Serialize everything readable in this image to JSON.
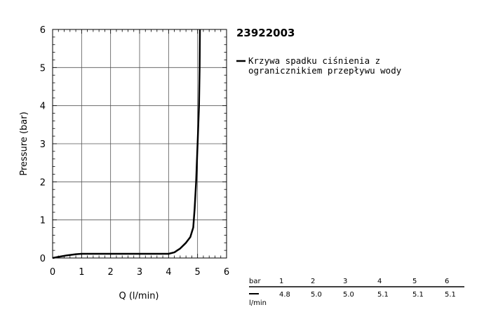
{
  "chart_data": {
    "type": "line",
    "title": "23922003",
    "xlabel": "Q (l/min)",
    "ylabel": "Pressure (bar)",
    "xlim": [
      0,
      6
    ],
    "ylim": [
      0,
      6
    ],
    "x_ticks": [
      "0",
      "1",
      "2",
      "3",
      "4",
      "5",
      "6"
    ],
    "y_ticks": [
      "0",
      "1",
      "2",
      "3",
      "4",
      "5",
      "6"
    ],
    "grid": true,
    "legend_position": "right",
    "series": [
      {
        "name": "Krzywa spadku ciśnienia z ogranicznikiem przepływu wody",
        "color": "#000000",
        "points": [
          [
            0.0,
            0.0
          ],
          [
            0.2,
            0.03
          ],
          [
            0.5,
            0.07
          ],
          [
            0.8,
            0.1
          ],
          [
            1.0,
            0.11
          ],
          [
            2.0,
            0.11
          ],
          [
            3.0,
            0.11
          ],
          [
            4.0,
            0.11
          ],
          [
            4.2,
            0.15
          ],
          [
            4.4,
            0.25
          ],
          [
            4.6,
            0.4
          ],
          [
            4.75,
            0.55
          ],
          [
            4.85,
            0.8
          ],
          [
            4.9,
            1.3
          ],
          [
            4.95,
            2.0
          ],
          [
            5.0,
            3.0
          ],
          [
            5.05,
            4.0
          ],
          [
            5.07,
            5.0
          ],
          [
            5.08,
            6.0
          ]
        ]
      }
    ],
    "legend_lines": [
      "Krzywa spadku ciśnienia z",
      "ogranicznikiem przepływu wody"
    ],
    "table": {
      "header_unit": "bar",
      "row_unit": "l/min",
      "bar": [
        "1",
        "2",
        "3",
        "4",
        "5",
        "6"
      ],
      "lmin": [
        "4.8",
        "5.0",
        "5.0",
        "5.1",
        "5.1",
        "5.1"
      ]
    }
  }
}
